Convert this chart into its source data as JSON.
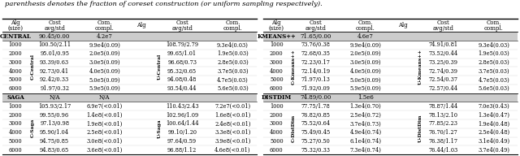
{
  "title": "parenthesis denotes the fraction of coreset construction (or uniform sampling respectively).",
  "fontsize_title": 6.0,
  "fontsize_header": 5.0,
  "fontsize_section": 5.0,
  "fontsize_data": 4.8,
  "fontsize_rotated": 4.2,
  "left_table": {
    "header_cols": [
      "Alg\n(size)",
      "Cost\navg/std",
      "Com.\ncompl.",
      "Alg",
      "Cost\navg/std",
      "Com.\ncompl."
    ],
    "sections": [
      {
        "section_header": [
          "Central",
          "90.45/0.00",
          "4.2e7"
        ],
        "row_label_left": "C-Central",
        "row_label_right": "U-Central",
        "rows": [
          [
            "1000",
            "100.50/2.11",
            "9.9e4(0.09)",
            "108.79/2.79",
            "9.3e4(0.03)"
          ],
          [
            "2000",
            "95.01/0.95",
            "2.0e5(0.09)",
            "99.65/1.01",
            "1.9e5(0.03)"
          ],
          [
            "3000",
            "93.39/0.63",
            "3.0e5(0.09)",
            "96.68/0.73",
            "2.8e5(0.03)"
          ],
          [
            "4000",
            "92.73/0.41",
            "4.0e5(0.09)",
            "95.32/0.65",
            "3.7e5(0.03)"
          ],
          [
            "5000",
            "92.42/0.33",
            "5.0e5(0.09)",
            "94.08/0.48",
            "4.7e5(0.03)"
          ],
          [
            "6000",
            "91.97/0.32",
            "5.9e5(0.09)",
            "93.54/0.44",
            "5.6e5(0.03)"
          ]
        ]
      },
      {
        "section_header": [
          "Saga",
          "N/A",
          "N/A"
        ],
        "row_label_left": "C-Saga",
        "row_label_right": "U-Saga",
        "rows": [
          [
            "1000",
            "105.93/2.17",
            "6.9e7(<0.01)",
            "110.43/2.43",
            "7.2e7(<0.01)"
          ],
          [
            "2000",
            "99.55/0.96",
            "1.4e8(<0.01)",
            "102.96/1.09",
            "1.6e8(<0.01)"
          ],
          [
            "3000",
            "97.13/0.98",
            "1.9e8(<0.01)",
            "100.64/1.44",
            "2.4e8(<0.01)"
          ],
          [
            "4000",
            "95.90/1.04",
            "2.5e8(<0.01)",
            "99.10/1.20",
            "3.3e8(<0.01)"
          ],
          [
            "5000",
            "94.75/0.85",
            "3.0e8(<0.01)",
            "97.64/0.59",
            "3.9e8(<0.01)"
          ],
          [
            "6000",
            "94.83/0.65",
            "3.6e8(<0.01)",
            "96.88/1.12",
            "4.6e8(<0.01)"
          ]
        ]
      }
    ]
  },
  "right_table": {
    "header_cols": [
      "Alg\n(size)",
      "Cost\navg/std",
      "Com.\ncompl.",
      "Alg",
      "Cost\navg/std",
      "Com.\ncompl."
    ],
    "sections": [
      {
        "section_header": [
          "Kmeans++",
          "71.65/0.00",
          "4.6e7"
        ],
        "row_label_left": "C-Kmeans++",
        "row_label_right": "U-Kmeans++",
        "rows": [
          [
            "1000",
            "73.76/0.38",
            "9.9e4(0.09)",
            "74.91/0.81",
            "9.3e4(0.03)"
          ],
          [
            "2000",
            "72.68/0.35",
            "2.0e5(0.09)",
            "73.52/0.44",
            "1.9e5(0.03)"
          ],
          [
            "3000",
            "72.23/0.17",
            "3.0e5(0.09)",
            "73.25/0.39",
            "2.8e5(0.03)"
          ],
          [
            "4000",
            "72.14/0.19",
            "4.0e5(0.09)",
            "72.74/0.39",
            "3.7e5(0.03)"
          ],
          [
            "5000",
            "71.97/0.13",
            "5.0e5(0.09)",
            "72.54/0.37",
            "4.7e5(0.03)"
          ],
          [
            "6000",
            "71.92/0.09",
            "5.9e5(0.09)",
            "72.57/0.44",
            "5.6e5(0.03)"
          ]
        ]
      },
      {
        "section_header": [
          "DistDim",
          "74.89/0.00",
          "1.5e6"
        ],
        "row_label_left": "C-DistDim",
        "row_label_right": "U-DistDim",
        "rows": [
          [
            "1000",
            "77.75/1.78",
            "1.3e4(0.70)",
            "78.87/1.44",
            "7.0e3(0.43)"
          ],
          [
            "2000",
            "76.82/0.85",
            "2.5e4(0.72)",
            "78.13/2.10",
            "1.3e4(0.47)"
          ],
          [
            "3000",
            "75.52/0.64",
            "3.7e4(0.73)",
            "77.85/2.23",
            "1.9e4(0.48)"
          ],
          [
            "4000",
            "75.49/0.45",
            "4.9e4(0.74)",
            "76.70/1.27",
            "2.5e4(0.48)"
          ],
          [
            "5000",
            "75.27/0.50",
            "6.1e4(0.74)",
            "76.38/1.17",
            "3.1e4(0.49)"
          ],
          [
            "6000",
            "75.32/0.33",
            "7.3e4(0.74)",
            "76.44/1.03",
            "3.7e4(0.49)"
          ]
        ]
      }
    ]
  }
}
